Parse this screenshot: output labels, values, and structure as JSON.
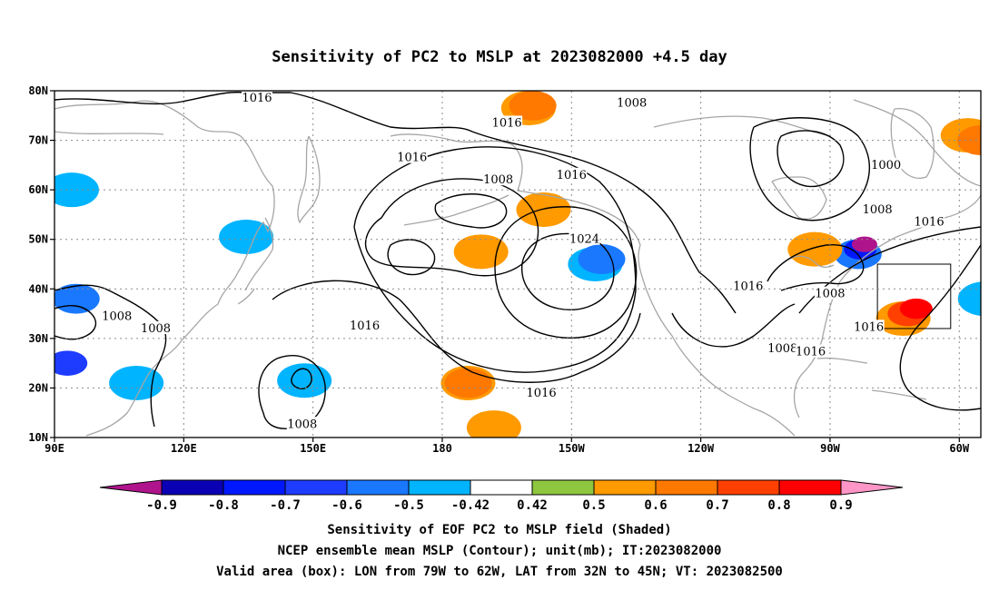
{
  "title": "Sensitivity of PC2 to MSLP at 2023082000 +4.5 day",
  "map": {
    "lon_range": [
      90,
      305
    ],
    "lat_range": [
      10,
      80
    ],
    "lat_ticks": [
      {
        "value": 80,
        "label": "80N"
      },
      {
        "value": 70,
        "label": "70N"
      },
      {
        "value": 60,
        "label": "60N"
      },
      {
        "value": 50,
        "label": "50N"
      },
      {
        "value": 40,
        "label": "40N"
      },
      {
        "value": 30,
        "label": "30N"
      },
      {
        "value": 20,
        "label": "20N"
      },
      {
        "value": 10,
        "label": "10N"
      }
    ],
    "lon_ticks": [
      {
        "value": 90,
        "label": "90E"
      },
      {
        "value": 120,
        "label": "120E"
      },
      {
        "value": 150,
        "label": "150E"
      },
      {
        "value": 180,
        "label": "180"
      },
      {
        "value": 210,
        "label": "150W"
      },
      {
        "value": 240,
        "label": "120W"
      },
      {
        "value": 270,
        "label": "90W"
      },
      {
        "value": 300,
        "label": "60W"
      }
    ],
    "valid_box": {
      "lon": [
        281,
        298
      ],
      "lat": [
        32,
        45
      ]
    },
    "contour_labels": [
      {
        "text": "1016",
        "lon": 137,
        "lat": 78.5
      },
      {
        "text": "1016",
        "lon": 195,
        "lat": 73.5
      },
      {
        "text": "1008",
        "lon": 224,
        "lat": 77.5
      },
      {
        "text": "1016",
        "lon": 173,
        "lat": 66.5
      },
      {
        "text": "1008",
        "lon": 193,
        "lat": 62
      },
      {
        "text": "1016",
        "lon": 210,
        "lat": 63
      },
      {
        "text": "1000",
        "lon": 283,
        "lat": 65
      },
      {
        "text": "1008",
        "lon": 281,
        "lat": 56
      },
      {
        "text": "1016",
        "lon": 293,
        "lat": 53.5
      },
      {
        "text": "1024",
        "lon": 213,
        "lat": 50
      },
      {
        "text": "1016",
        "lon": 251,
        "lat": 40.5
      },
      {
        "text": "1008",
        "lon": 270,
        "lat": 39
      },
      {
        "text": "1016",
        "lon": 162,
        "lat": 32.5
      },
      {
        "text": "1008",
        "lon": 104.5,
        "lat": 34.5
      },
      {
        "text": "1008",
        "lon": 113.5,
        "lat": 32
      },
      {
        "text": "1008",
        "lon": 259,
        "lat": 28
      },
      {
        "text": "1016",
        "lon": 265.5,
        "lat": 27.3
      },
      {
        "text": "1016",
        "lon": 203,
        "lat": 19
      },
      {
        "text": "1016",
        "lon": 279,
        "lat": 32.3
      },
      {
        "text": "1008",
        "lon": 147.5,
        "lat": 12.7
      }
    ],
    "shaded_sensitivity": [
      {
        "lon": 215.5,
        "lat": 45,
        "value": -0.5
      },
      {
        "lon": 217,
        "lat": 46,
        "value": -0.6
      },
      {
        "lon": 276.5,
        "lat": 47,
        "value": -0.6
      },
      {
        "lon": 277,
        "lat": 48,
        "value": -0.8
      },
      {
        "lon": 278,
        "lat": 49,
        "value": -0.9
      },
      {
        "lon": 94,
        "lat": 60,
        "value": -0.5
      },
      {
        "lon": 95,
        "lat": 38,
        "value": -0.6
      },
      {
        "lon": 93,
        "lat": 25,
        "value": -0.7
      },
      {
        "lon": 109,
        "lat": 21,
        "value": -0.5
      },
      {
        "lon": 148,
        "lat": 21.5,
        "value": -0.5
      },
      {
        "lon": 134.5,
        "lat": 50.5,
        "value": -0.5
      },
      {
        "lon": 306,
        "lat": 38,
        "value": -0.5
      },
      {
        "lon": 287,
        "lat": 34,
        "value": 0.5
      },
      {
        "lon": 288,
        "lat": 35,
        "value": 0.7
      },
      {
        "lon": 290,
        "lat": 36,
        "value": 0.8
      },
      {
        "lon": 302,
        "lat": 71,
        "value": 0.5
      },
      {
        "lon": 305,
        "lat": 70,
        "value": 0.6
      },
      {
        "lon": 200,
        "lat": 76.5,
        "value": 0.5
      },
      {
        "lon": 201,
        "lat": 77,
        "value": 0.6
      },
      {
        "lon": 186,
        "lat": 21,
        "value": 0.5
      },
      {
        "lon": 186,
        "lat": 21,
        "value": 0.6
      },
      {
        "lon": 189,
        "lat": 47.5,
        "value": 0.5
      },
      {
        "lon": 203.5,
        "lat": 56,
        "value": 0.5
      },
      {
        "lon": 192,
        "lat": 12,
        "value": 0.5
      },
      {
        "lon": 266.5,
        "lat": 48,
        "value": 0.5
      }
    ]
  },
  "colorbar": {
    "levels": [
      "-0.9",
      "-0.8",
      "-0.7",
      "-0.6",
      "-0.5",
      "-0.42",
      "0.42",
      "0.5",
      "0.6",
      "0.7",
      "0.8",
      "0.9"
    ],
    "colors": [
      "#b0148c",
      "#0a00b4",
      "#0018ff",
      "#1e3cff",
      "#1a78ff",
      "#00b4ff",
      "#ffffff",
      "#8ec63f",
      "#ff9a00",
      "#ff7800",
      "#ff4000",
      "#ff0000",
      "#ff96c8"
    ]
  },
  "captions": [
    "Sensitivity of EOF PC2 to MSLP field (Shaded)",
    "NCEP ensemble mean MSLP (Contour); unit(mb); IT:2023082000",
    "Valid area (box): LON from 79W to 62W, LAT from 32N to 45N; VT: 2023082500"
  ]
}
